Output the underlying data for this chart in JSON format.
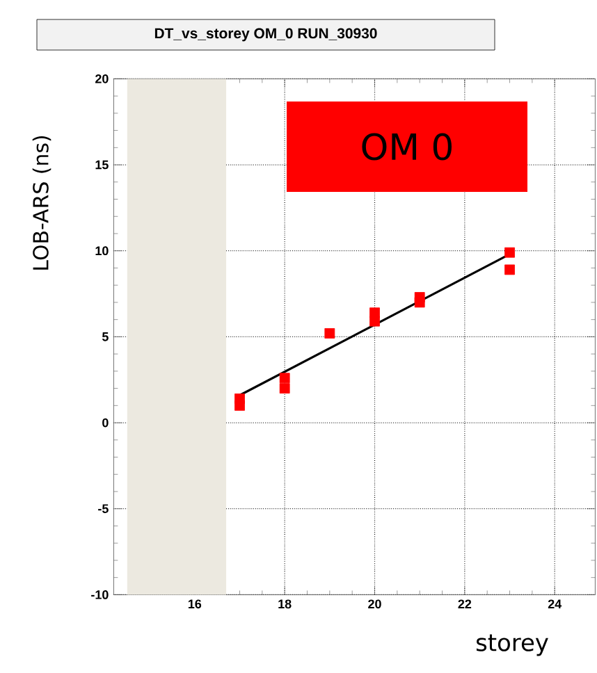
{
  "chart_data": {
    "type": "scatter",
    "title": "DT_vs_storey OM_0 RUN_30930",
    "xlabel": "storey",
    "ylabel": "LOB-ARS (ns)",
    "annotations": [
      "OM 0"
    ],
    "series": [
      {
        "color": "#ff0000",
        "marker": "square",
        "x": [
          17,
          17,
          18,
          18,
          19,
          20,
          20,
          21,
          21,
          23,
          23
        ],
        "values": [
          1.0,
          1.4,
          2.0,
          2.6,
          5.2,
          5.9,
          6.4,
          7.0,
          7.3,
          9.9,
          8.9
        ]
      },
      {
        "type": "line",
        "color": "#000000",
        "marker": "none",
        "line_style": "solid",
        "x": [
          17,
          23
        ],
        "values": [
          1.6,
          9.8
        ]
      }
    ],
    "bands": [
      {
        "axis": "x",
        "from": 14.5,
        "to": 16.7,
        "color": "#ece9e0"
      }
    ],
    "xlim": [
      14.2,
      24.9
    ],
    "ylim": [
      -10,
      20
    ],
    "xticks": [
      16,
      18,
      20,
      22,
      24
    ],
    "yticks": [
      -10,
      -5,
      0,
      5,
      10,
      15,
      20
    ],
    "grid": true
  }
}
